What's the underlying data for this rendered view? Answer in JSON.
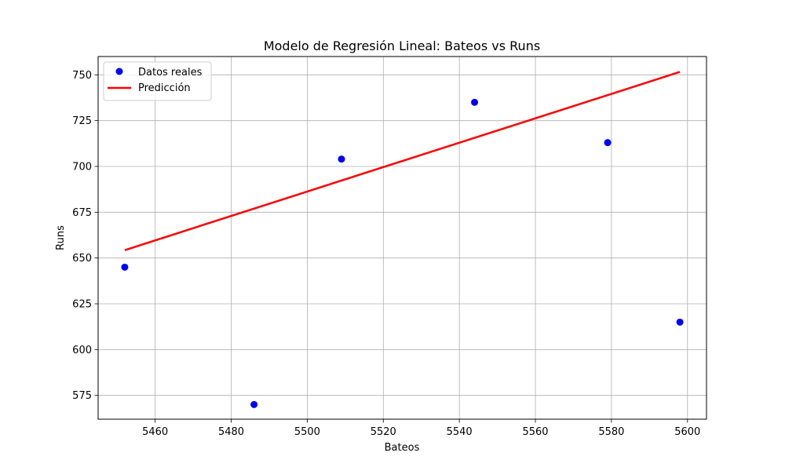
{
  "chart_data": {
    "type": "scatter",
    "title": "Modelo de Regresión Lineal: Bateos vs Runs",
    "xlabel": "Bateos",
    "ylabel": "Runs",
    "xlim": [
      5445,
      5605
    ],
    "ylim": [
      562,
      760
    ],
    "xticks": [
      5460,
      5480,
      5500,
      5520,
      5540,
      5560,
      5580,
      5600
    ],
    "yticks": [
      575,
      600,
      625,
      650,
      675,
      700,
      725,
      750
    ],
    "grid": true,
    "legend_position": "top-left",
    "series": [
      {
        "name": "Datos reales",
        "kind": "scatter",
        "color": "#0000ff",
        "points": [
          {
            "x": 5452,
            "y": 645
          },
          {
            "x": 5486,
            "y": 570
          },
          {
            "x": 5509,
            "y": 704
          },
          {
            "x": 5544,
            "y": 735
          },
          {
            "x": 5579,
            "y": 713
          },
          {
            "x": 5598,
            "y": 615
          }
        ]
      },
      {
        "name": "Predicción",
        "kind": "line",
        "color": "#ff0000",
        "points": [
          {
            "x": 5452,
            "y": 654.3
          },
          {
            "x": 5598,
            "y": 751.6
          }
        ]
      }
    ]
  }
}
